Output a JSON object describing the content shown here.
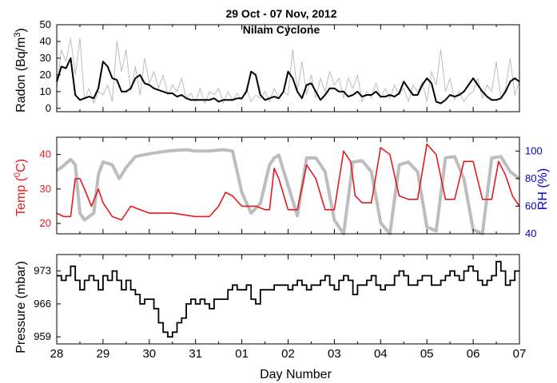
{
  "chart_data": {
    "title": "29 Oct - 07 Nov, 2012",
    "subtitle": "Nilam Cyclone",
    "xlabel": "Day Number",
    "x_tick_labels": [
      "28",
      "29",
      "30",
      "31",
      "01",
      "02",
      "03",
      "04",
      "05",
      "06",
      "07"
    ],
    "colors": {
      "radon_raw": "#bdbdbd",
      "radon_smooth": "#000000",
      "temp": "#e41a1c",
      "rh": "#bdbdbd",
      "rh_axis": "#0000cc",
      "pressure": "#000000"
    },
    "panels": [
      {
        "type": "line",
        "ylabel_main": "Radon (Bq/m",
        "ylabel_sup": "3",
        "ylabel_end": ")",
        "ylim": [
          -2,
          50
        ],
        "yticks": [
          0,
          10,
          20,
          30,
          40,
          50
        ],
        "series": [
          {
            "key": "raw",
            "x": [
              0,
              0.1,
              0.2,
              0.3,
              0.4,
              0.5,
              0.6,
              0.7,
              0.8,
              0.9,
              1.0,
              1.1,
              1.2,
              1.3,
              1.4,
              1.5,
              1.6,
              1.7,
              1.8,
              1.9,
              2.0,
              2.1,
              2.2,
              2.3,
              2.4,
              2.5,
              2.6,
              2.7,
              2.8,
              2.9,
              3.0,
              3.1,
              3.2,
              3.3,
              3.4,
              3.5,
              3.6,
              3.7,
              3.8,
              3.9,
              4.0,
              4.1,
              4.2,
              4.3,
              4.4,
              4.5,
              4.6,
              4.7,
              4.8,
              4.9,
              5.0,
              5.1,
              5.2,
              5.3,
              5.4,
              5.5,
              5.6,
              5.7,
              5.8,
              5.9,
              6.0,
              6.1,
              6.2,
              6.3,
              6.4,
              6.5,
              6.6,
              6.7,
              6.8,
              6.9,
              7.0,
              7.1,
              7.2,
              7.3,
              7.4,
              7.5,
              7.6,
              7.7,
              7.8,
              7.9,
              8.0,
              8.1,
              8.2,
              8.3,
              8.4,
              8.5,
              8.6,
              8.7,
              8.8,
              8.9,
              9.0,
              9.1,
              9.2,
              9.3,
              9.4,
              9.5,
              9.6,
              9.7,
              9.8,
              9.9,
              10.0
            ],
            "y": [
              12,
              35,
              28,
              42,
              20,
              42,
              5,
              12,
              3,
              10,
              8,
              14,
              4,
              40,
              22,
              35,
              10,
              25,
              8,
              30,
              15,
              22,
              12,
              20,
              8,
              14,
              10,
              18,
              6,
              9,
              4,
              12,
              3,
              10,
              8,
              12,
              3,
              10,
              5,
              9,
              5,
              12,
              4,
              8,
              6,
              10,
              4,
              12,
              6,
              10,
              8,
              35,
              10,
              28,
              8,
              20,
              6,
              18,
              10,
              22,
              14,
              18,
              6,
              18,
              12,
              20,
              4,
              10,
              6,
              15,
              6,
              12,
              6,
              14,
              8,
              12,
              4,
              14,
              10,
              16,
              4,
              22,
              14,
              35,
              10,
              18,
              5,
              10,
              4,
              8,
              10,
              18,
              6,
              14,
              10,
              28,
              6,
              12,
              30,
              8,
              16
            ]
          },
          {
            "key": "smooth",
            "x": [
              0,
              0.1,
              0.2,
              0.3,
              0.4,
              0.5,
              0.6,
              0.7,
              0.8,
              0.9,
              1.0,
              1.1,
              1.2,
              1.3,
              1.4,
              1.5,
              1.6,
              1.7,
              1.8,
              1.9,
              2.0,
              2.1,
              2.2,
              2.3,
              2.4,
              2.5,
              2.6,
              2.7,
              2.8,
              2.9,
              3.0,
              3.1,
              3.2,
              3.3,
              3.4,
              3.5,
              3.6,
              3.7,
              3.8,
              3.9,
              4.0,
              4.1,
              4.2,
              4.3,
              4.4,
              4.5,
              4.6,
              4.7,
              4.8,
              4.9,
              5.0,
              5.1,
              5.2,
              5.3,
              5.4,
              5.5,
              5.6,
              5.7,
              5.8,
              5.9,
              6.0,
              6.1,
              6.2,
              6.3,
              6.4,
              6.5,
              6.6,
              6.7,
              6.8,
              6.9,
              7.0,
              7.1,
              7.2,
              7.3,
              7.4,
              7.5,
              7.6,
              7.7,
              7.8,
              7.9,
              8.0,
              8.1,
              8.2,
              8.3,
              8.4,
              8.5,
              8.6,
              8.7,
              8.8,
              8.9,
              9.0,
              9.1,
              9.2,
              9.3,
              9.4,
              9.5,
              9.6,
              9.7,
              9.8,
              9.9,
              10.0
            ],
            "y": [
              16,
              25,
              24,
              30,
              8,
              5,
              6,
              7,
              6,
              12,
              28,
              25,
              18,
              17,
              10,
              10,
              12,
              18,
              20,
              15,
              14,
              12,
              11,
              10,
              9,
              9,
              7,
              8,
              6,
              5,
              5,
              5,
              5,
              5,
              6,
              4,
              5,
              5,
              5,
              6,
              6,
              10,
              22,
              20,
              8,
              5,
              6,
              7,
              6,
              10,
              22,
              18,
              10,
              6,
              14,
              15,
              10,
              5,
              8,
              12,
              12,
              10,
              10,
              7,
              8,
              10,
              7,
              8,
              8,
              10,
              7,
              7,
              8,
              7,
              9,
              16,
              12,
              8,
              8,
              14,
              18,
              15,
              4,
              3,
              5,
              8,
              7,
              8,
              10,
              14,
              18,
              14,
              10,
              7,
              5,
              5,
              6,
              10,
              16,
              18,
              16
            ]
          }
        ]
      },
      {
        "type": "line",
        "ylabel_left_main": "Temp (",
        "ylabel_left_sup": "0",
        "ylabel_left_end": "C)",
        "ylabel_right": "RH (%)",
        "ylim_left": [
          17,
          45
        ],
        "yticks_left": [
          20,
          30,
          40
        ],
        "ylim_right": [
          40,
          110
        ],
        "yticks_right": [
          40,
          60,
          80,
          100
        ],
        "series": [
          {
            "key": "temp",
            "axis": "left",
            "x": [
              0,
              0.15,
              0.3,
              0.4,
              0.5,
              0.6,
              0.75,
              0.9,
              1.0,
              1.2,
              1.4,
              1.6,
              1.8,
              2.0,
              2.5,
              3.0,
              3.3,
              3.5,
              3.65,
              3.8,
              4.0,
              4.3,
              4.5,
              4.6,
              4.7,
              4.8,
              5.0,
              5.2,
              5.4,
              5.6,
              5.8,
              6.0,
              6.2,
              6.35,
              6.45,
              6.6,
              6.8,
              7.0,
              7.2,
              7.4,
              7.6,
              7.8,
              8.0,
              8.2,
              8.4,
              8.6,
              8.8,
              9.0,
              9.2,
              9.4,
              9.55,
              9.7,
              9.85,
              10.0
            ],
            "y": [
              23,
              22,
              22,
              33,
              33,
              30,
              25,
              30,
              26,
              22,
              21,
              25,
              24,
              23,
              23,
              22,
              22,
              25,
              29,
              28,
              25,
              25,
              24,
              24,
              36,
              33,
              24,
              24,
              37,
              33,
              24,
              24,
              41,
              38,
              28,
              26,
              26,
              42,
              40,
              28,
              27,
              27,
              43,
              40,
              27,
              27,
              38,
              38,
              27,
              27,
              38,
              34,
              28,
              25
            ]
          },
          {
            "key": "rh",
            "axis": "right",
            "x": [
              0,
              0.1,
              0.3,
              0.4,
              0.5,
              0.6,
              0.8,
              0.9,
              1.0,
              1.2,
              1.35,
              1.5,
              1.7,
              2.0,
              2.4,
              2.8,
              3.0,
              3.3,
              3.6,
              3.8,
              4.0,
              4.2,
              4.4,
              4.6,
              4.7,
              4.8,
              5.0,
              5.2,
              5.4,
              5.6,
              5.8,
              6.0,
              6.2,
              6.4,
              6.6,
              6.8,
              7.0,
              7.2,
              7.4,
              7.6,
              7.8,
              8.0,
              8.2,
              8.4,
              8.6,
              8.8,
              9.0,
              9.2,
              9.4,
              9.6,
              9.8,
              10.0
            ],
            "y": [
              86,
              88,
              94,
              90,
              55,
              50,
              55,
              83,
              92,
              90,
              80,
              88,
              96,
              98,
              100,
              101,
              100,
              100,
              101,
              100,
              70,
              55,
              62,
              90,
              95,
              97,
              75,
              53,
              95,
              95,
              85,
              50,
              40,
              92,
              93,
              85,
              48,
              40,
              90,
              92,
              85,
              45,
              42,
              95,
              96,
              80,
              43,
              40,
              95,
              96,
              85,
              80
            ]
          }
        ]
      },
      {
        "type": "line",
        "ylabel": "Pressure (mbar)",
        "ylim": [
          957.5,
          976.5
        ],
        "yticks": [
          959,
          966,
          973
        ],
        "series": [
          {
            "key": "pressure",
            "x": [
              0,
              0.1,
              0.2,
              0.3,
              0.4,
              0.5,
              0.6,
              0.7,
              0.8,
              0.9,
              1.0,
              1.1,
              1.2,
              1.3,
              1.4,
              1.5,
              1.6,
              1.7,
              1.8,
              1.9,
              2.0,
              2.1,
              2.2,
              2.3,
              2.4,
              2.5,
              2.6,
              2.7,
              2.8,
              2.9,
              3.0,
              3.1,
              3.2,
              3.3,
              3.4,
              3.5,
              3.6,
              3.7,
              3.8,
              3.9,
              4.0,
              4.1,
              4.2,
              4.3,
              4.4,
              4.5,
              4.6,
              4.7,
              4.8,
              4.9,
              5.0,
              5.1,
              5.2,
              5.3,
              5.4,
              5.5,
              5.6,
              5.7,
              5.8,
              5.9,
              6.0,
              6.1,
              6.2,
              6.3,
              6.4,
              6.5,
              6.6,
              6.7,
              6.8,
              6.9,
              7.0,
              7.1,
              7.2,
              7.3,
              7.4,
              7.5,
              7.6,
              7.7,
              7.8,
              7.9,
              8.0,
              8.1,
              8.2,
              8.3,
              8.4,
              8.5,
              8.6,
              8.7,
              8.8,
              8.9,
              9.0,
              9.1,
              9.2,
              9.3,
              9.4,
              9.5,
              9.6,
              9.7,
              9.8,
              9.9,
              10.0
            ],
            "y": [
              972,
              971,
              972,
              974,
              971,
              969,
              971,
              972,
              971,
              969,
              972,
              971,
              973,
              971,
              969,
              971,
              969,
              968,
              966,
              967,
              967,
              965,
              962,
              960,
              959,
              960,
              962,
              963,
              966,
              967,
              966,
              967,
              966,
              965,
              967,
              967,
              967,
              969,
              970,
              969,
              969,
              970,
              967,
              966,
              969,
              969,
              969,
              970,
              970,
              970,
              969,
              970,
              971,
              970,
              969,
              970,
              970,
              971,
              972,
              970,
              969,
              971,
              972,
              971,
              968,
              970,
              970,
              971,
              972,
              970,
              969,
              970,
              970,
              972,
              973,
              972,
              970,
              970,
              971,
              972,
              972,
              970,
              970,
              971,
              972,
              973,
              972,
              971,
              973,
              974,
              973,
              971,
              970,
              971,
              972,
              975,
              973,
              970,
              971,
              973,
              973
            ]
          }
        ]
      }
    ]
  }
}
